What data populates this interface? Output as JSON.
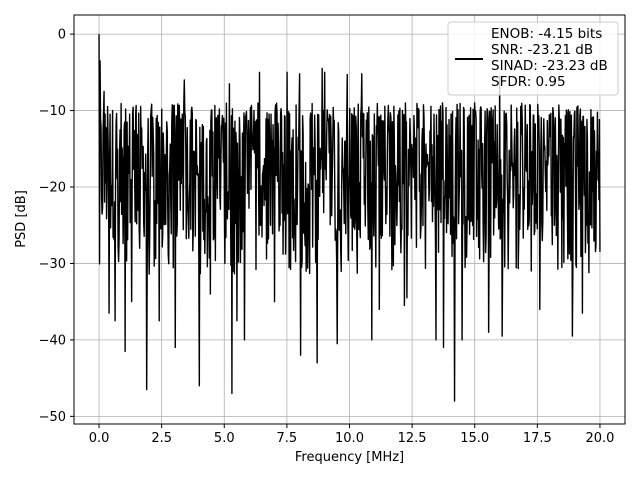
{
  "chart_data": {
    "type": "line",
    "xlabel": "Frequency [MHz]",
    "ylabel": "PSD [dB]",
    "xlim": [
      -1.0,
      21.0
    ],
    "ylim": [
      -51.0,
      2.5
    ],
    "x_ticks": [
      0.0,
      2.5,
      5.0,
      7.5,
      10.0,
      12.5,
      15.0,
      17.5,
      20.0
    ],
    "x_tick_labels": [
      "0.0",
      "2.5",
      "5.0",
      "7.5",
      "10.0",
      "12.5",
      "15.0",
      "17.5",
      "20.0"
    ],
    "y_ticks": [
      0,
      -10,
      -20,
      -30,
      -40,
      -50
    ],
    "y_tick_labels": [
      "0",
      "−10",
      "−20",
      "−30",
      "−40",
      "−50"
    ],
    "grid": true,
    "legend_position": "top-right",
    "line_color": "#000000",
    "series": [
      {
        "legend_lines": [
          "ENOB: -4.15 bits",
          "SNR: -23.21 dB",
          "SINAD: -23.23 dB",
          "SFDR: 0.95"
        ],
        "x_range": [
          0.0,
          20.0
        ],
        "points": 1000,
        "band_approx": {
          "typical_top": -9,
          "typical_bottom": -27
        },
        "peaks": [
          {
            "x": 0.0,
            "y": 0.0
          },
          {
            "x": 0.05,
            "y": -3.5
          },
          {
            "x": 0.2,
            "y": -7.5
          },
          {
            "x": 3.4,
            "y": -6.0
          },
          {
            "x": 5.2,
            "y": -6.5
          },
          {
            "x": 6.4,
            "y": -5.0
          },
          {
            "x": 7.5,
            "y": -5.0
          },
          {
            "x": 8.0,
            "y": -5.2
          },
          {
            "x": 8.9,
            "y": -4.5
          },
          {
            "x": 9.0,
            "y": -5.0
          },
          {
            "x": 9.9,
            "y": -5.3
          },
          {
            "x": 10.5,
            "y": -5.2
          },
          {
            "x": 16.0,
            "y": -5.5
          }
        ],
        "dips": [
          {
            "x": 0.4,
            "y": -36.5
          },
          {
            "x": 0.65,
            "y": -37.5
          },
          {
            "x": 1.05,
            "y": -41.5
          },
          {
            "x": 1.3,
            "y": -35.0
          },
          {
            "x": 1.9,
            "y": -46.5
          },
          {
            "x": 2.4,
            "y": -37.5
          },
          {
            "x": 3.05,
            "y": -41.0
          },
          {
            "x": 4.0,
            "y": -46.0
          },
          {
            "x": 4.45,
            "y": -34.0
          },
          {
            "x": 5.3,
            "y": -47.0
          },
          {
            "x": 5.5,
            "y": -37.5
          },
          {
            "x": 5.8,
            "y": -40.0
          },
          {
            "x": 7.0,
            "y": -35.0
          },
          {
            "x": 8.05,
            "y": -42.0
          },
          {
            "x": 8.7,
            "y": -43.0
          },
          {
            "x": 9.5,
            "y": -40.5
          },
          {
            "x": 10.9,
            "y": -40.0
          },
          {
            "x": 11.2,
            "y": -36.0
          },
          {
            "x": 12.2,
            "y": -35.5
          },
          {
            "x": 12.3,
            "y": -34.5
          },
          {
            "x": 13.45,
            "y": -40.0
          },
          {
            "x": 13.75,
            "y": -41.0
          },
          {
            "x": 14.2,
            "y": -48.0
          },
          {
            "x": 14.5,
            "y": -40.0
          },
          {
            "x": 15.55,
            "y": -39.0
          },
          {
            "x": 16.1,
            "y": -39.5
          },
          {
            "x": 17.6,
            "y": -36.0
          },
          {
            "x": 18.9,
            "y": -39.5
          },
          {
            "x": 19.3,
            "y": -36.5
          }
        ]
      }
    ]
  }
}
